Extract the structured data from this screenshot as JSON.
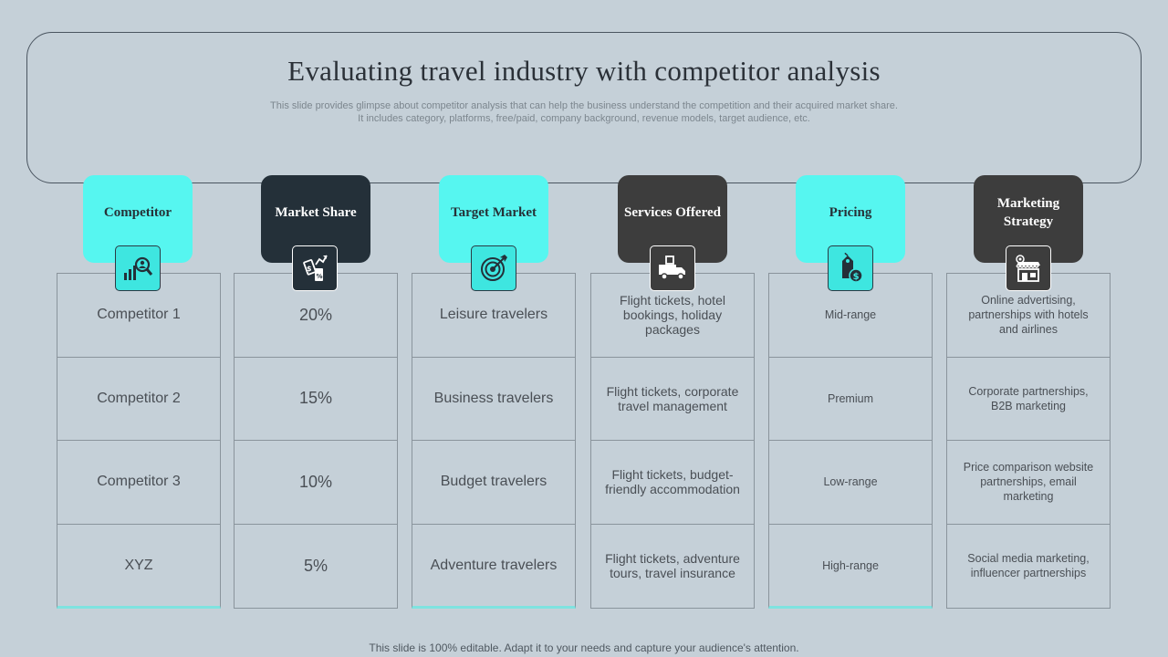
{
  "title": "Evaluating travel industry with competitor analysis",
  "subtitle_line1": "This slide provides glimpse about competitor analysis that can help the business understand the competition and their acquired market share.",
  "subtitle_line2": "It includes category, platforms, free/paid, company background, revenue models, target audience, etc.",
  "columns": [
    {
      "header": "Competitor",
      "icon": "analysis-person-icon",
      "cells": [
        "Competitor 1",
        "Competitor 2",
        "Competitor 3",
        "XYZ"
      ]
    },
    {
      "header": "Market Share",
      "icon": "market-growth-icon",
      "cells": [
        "20%",
        "15%",
        "10%",
        "5%"
      ]
    },
    {
      "header": "Target Market",
      "icon": "target-icon",
      "cells": [
        "Leisure travelers",
        "Business travelers",
        "Budget travelers",
        "Adventure travelers"
      ]
    },
    {
      "header": "Services Offered",
      "icon": "delivery-truck-icon",
      "cells": [
        "Flight tickets, hotel bookings, holiday packages",
        "Flight tickets, corporate travel management",
        "Flight tickets, budget-friendly accommodation",
        "Flight tickets, adventure tours, travel insurance"
      ]
    },
    {
      "header": "Pricing",
      "icon": "price-tag-icon",
      "cells": [
        "Mid-range",
        "Premium",
        "Low-range",
        "High-range"
      ]
    },
    {
      "header": "Marketing Strategy",
      "icon": "storefront-icon",
      "cells": [
        "Online advertising, partnerships with hotels and airlines",
        "Corporate partnerships, B2B marketing",
        "Price comparison website partnerships, email marketing",
        "Social media marketing, influencer partnerships"
      ]
    }
  ],
  "footer": "This slide is 100% editable. Adapt it to your needs and capture your audience's attention.",
  "colors": {
    "background": "#c5d0d8",
    "cyan": "#56f6f0",
    "navy": "#243039",
    "dark": "#3d3d3d"
  }
}
